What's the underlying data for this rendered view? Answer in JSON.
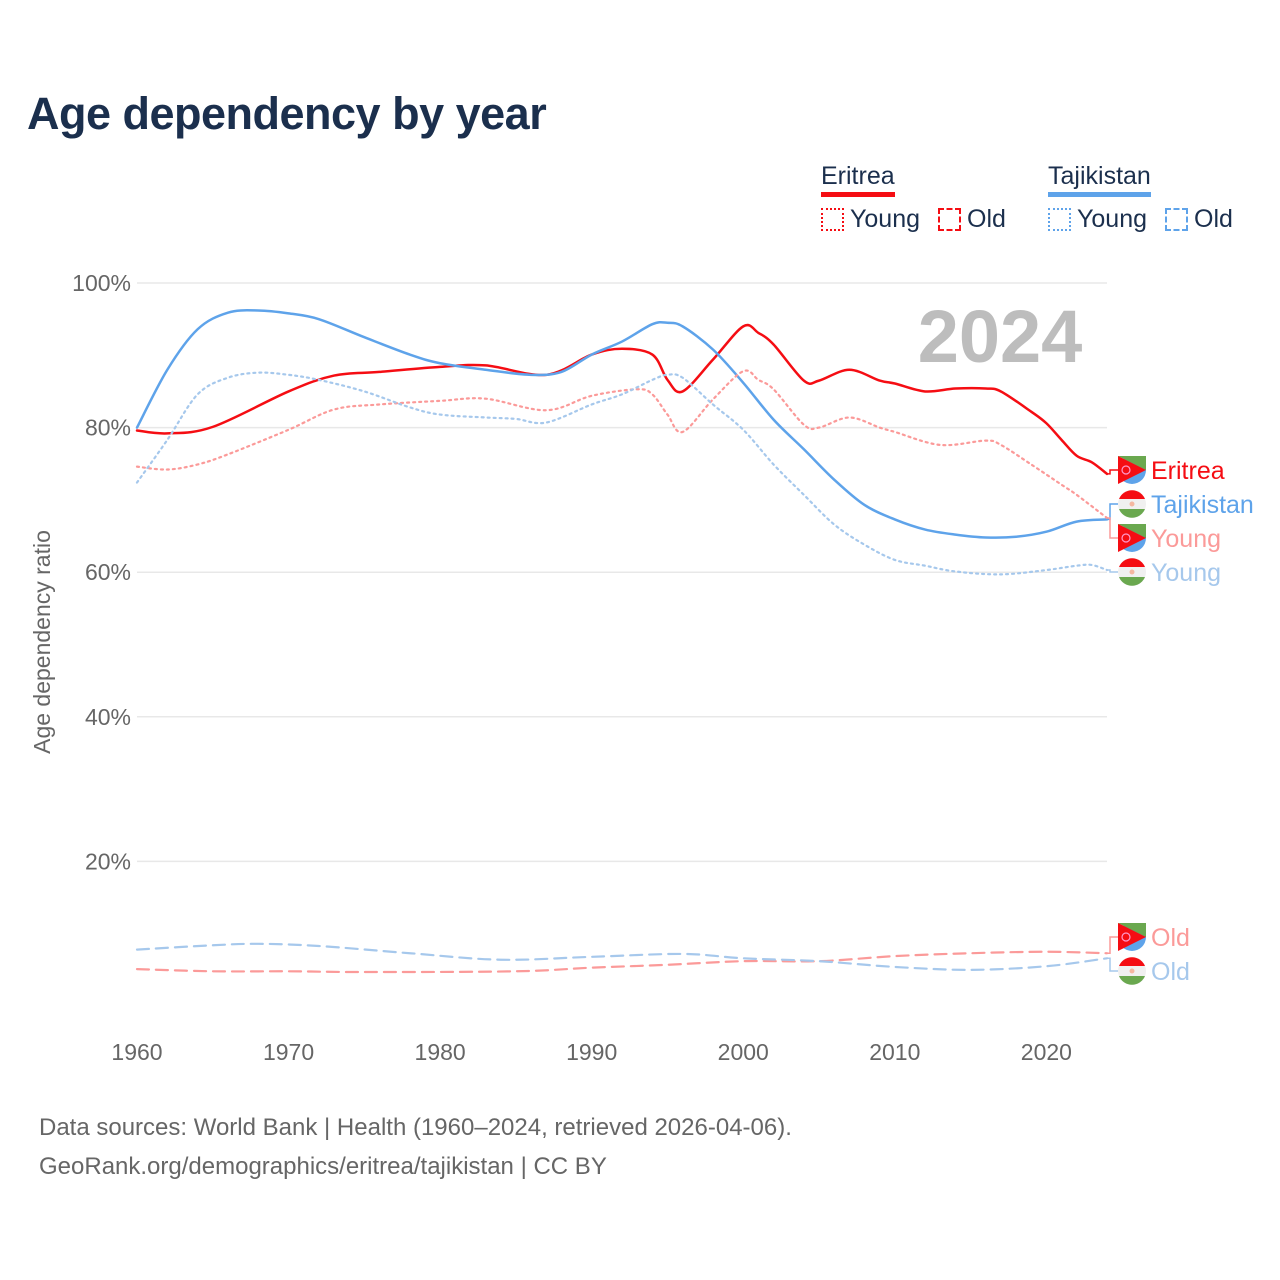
{
  "title": "Age dependency by year",
  "legend": {
    "countries": [
      {
        "name": "Eritrea",
        "color": "#f50d13",
        "items": [
          "Young",
          "Old"
        ]
      },
      {
        "name": "Tajikistan",
        "color": "#5ea3ea",
        "items": [
          "Young",
          "Old"
        ]
      }
    ]
  },
  "year_watermark": "2024",
  "source_lines": [
    "Data sources: World Bank | Health (1960–2024, retrieved 2026-04-06).",
    "GeoRank.org/demographics/eritrea/tajikistan | CC BY"
  ],
  "chart_data": {
    "type": "line",
    "title": "Age dependency by year",
    "xlabel": "",
    "ylabel": "Age dependency ratio",
    "xlim": [
      1960,
      2024
    ],
    "ylim": [
      0,
      100
    ],
    "x_ticks": [
      "1960",
      "1970",
      "1980",
      "1990",
      "2000",
      "2010",
      "2020"
    ],
    "y_ticks": [
      "20%",
      "40%",
      "60%",
      "80%",
      "100%"
    ],
    "grid": true,
    "series": [
      {
        "name": "Eritrea",
        "end_label": "Eritrea",
        "country": "Eritrea",
        "style": "solid",
        "color": "#f50d13",
        "x": [
          1960,
          1962,
          1965,
          1970,
          1973,
          1976,
          1980,
          1983,
          1987,
          1990,
          1992,
          1994,
          1995,
          1996,
          1998,
          2000,
          2001,
          2002,
          2004,
          2005,
          2007,
          2009,
          2010,
          2012,
          2014,
          2016,
          2017,
          2019,
          2020,
          2021,
          2022,
          2023,
          2024
        ],
        "y": [
          79.6,
          79.2,
          80.1,
          85,
          87.2,
          87.7,
          88.4,
          88.6,
          87.3,
          90.1,
          90.9,
          90.1,
          86.6,
          85,
          89.4,
          94,
          93.1,
          91.5,
          86.5,
          86.5,
          88,
          86.5,
          86.1,
          85,
          85.4,
          85.4,
          85,
          82.2,
          80.6,
          78.3,
          76.1,
          75.2,
          73.6
        ]
      },
      {
        "name": "Tajikistan",
        "end_label": "Tajikistan",
        "country": "Tajikistan",
        "style": "solid",
        "color": "#5ea3ea",
        "x": [
          1960,
          1962,
          1964,
          1966,
          1968,
          1970,
          1972,
          1975,
          1978,
          1980,
          1983,
          1986,
          1988,
          1990,
          1992,
          1994,
          1995,
          1996,
          1998,
          2000,
          2002,
          2004,
          2006,
          2008,
          2010,
          2012,
          2014,
          2016,
          2018,
          2020,
          2022,
          2024
        ],
        "y": [
          80,
          88,
          93.6,
          95.9,
          96.2,
          95.8,
          95,
          92.5,
          90.1,
          88.9,
          88,
          87.3,
          87.7,
          90.1,
          91.9,
          94.3,
          94.5,
          94,
          90.8,
          86.2,
          81.1,
          77,
          72.8,
          69.3,
          67.3,
          65.9,
          65.2,
          64.8,
          64.9,
          65.6,
          67,
          67.3
        ]
      },
      {
        "name": "Eritrea Young",
        "end_label": "Young",
        "country": "Eritrea",
        "style": "dotted",
        "color": "#fb9a99",
        "x": [
          1960,
          1962,
          1964,
          1966,
          1970,
          1973,
          1976,
          1980,
          1983,
          1987,
          1990,
          1993,
          1994,
          1995,
          1996,
          1998,
          2000,
          2001,
          2002,
          2004,
          2005,
          2007,
          2009,
          2010,
          2013,
          2016,
          2017,
          2019,
          2021,
          2022,
          2024
        ],
        "y": [
          74.6,
          74.2,
          74.9,
          76.3,
          79.7,
          82.5,
          83.2,
          83.7,
          84,
          82.4,
          84.4,
          85.3,
          84.6,
          81.8,
          79.4,
          83.9,
          87.8,
          86.6,
          85.3,
          80.4,
          80,
          81.4,
          80,
          79.4,
          77.6,
          78.2,
          77.6,
          74.9,
          72.1,
          70.7,
          67.5
        ]
      },
      {
        "name": "Tajikistan Young",
        "end_label": "Young",
        "country": "Tajikistan",
        "style": "dotted",
        "color": "#a6c8ec",
        "x": [
          1960,
          1962,
          1964,
          1966,
          1968,
          1970,
          1972,
          1975,
          1978,
          1980,
          1983,
          1985,
          1987,
          1990,
          1992,
          1994,
          1995,
          1996,
          1998,
          2000,
          2002,
          2004,
          2006,
          2008,
          2010,
          2012,
          2014,
          2017,
          2020,
          2022,
          2023,
          2024
        ],
        "y": [
          72.4,
          78.3,
          84.6,
          86.9,
          87.6,
          87.3,
          86.6,
          85,
          82.8,
          81.8,
          81.4,
          81.2,
          80.7,
          83.2,
          84.6,
          86.6,
          87.3,
          86.9,
          83.2,
          79.7,
          74.9,
          70.7,
          66.6,
          63.8,
          61.7,
          60.9,
          60.1,
          59.7,
          60.3,
          60.9,
          61,
          60.3
        ]
      },
      {
        "name": "Eritrea Old",
        "end_label": "Old",
        "country": "Eritrea",
        "style": "dashed",
        "color": "#fb9a99",
        "x": [
          1960,
          1965,
          1970,
          1975,
          1985,
          1990,
          1995,
          2000,
          2005,
          2010,
          2015,
          2020,
          2024
        ],
        "y": [
          5.1,
          4.8,
          4.8,
          4.7,
          4.8,
          5.3,
          5.7,
          6.2,
          6.2,
          6.9,
          7.3,
          7.5,
          7.3
        ]
      },
      {
        "name": "Tajikistan Old",
        "end_label": "Old",
        "country": "Tajikistan",
        "style": "dashed",
        "color": "#a6c8ec",
        "x": [
          1960,
          1965,
          1968,
          1972,
          1978,
          1984,
          1990,
          1996,
          2000,
          2005,
          2010,
          2015,
          2020,
          2024
        ],
        "y": [
          7.8,
          8.4,
          8.6,
          8.3,
          7.3,
          6.4,
          6.8,
          7.2,
          6.6,
          6.2,
          5.4,
          5.0,
          5.5,
          6.6
        ]
      }
    ]
  }
}
